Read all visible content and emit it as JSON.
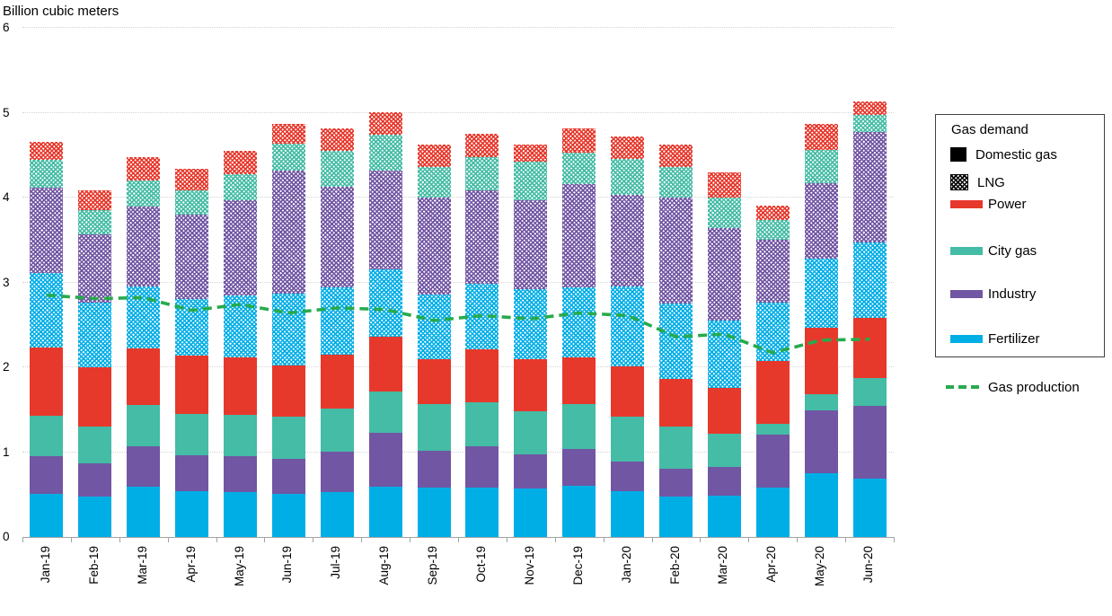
{
  "chart_data": {
    "type": "stacked-bar-with-line",
    "title": "Billion cubic meters",
    "ylim": [
      0,
      6
    ],
    "yticks": [
      0,
      1,
      2,
      3,
      4,
      5,
      6
    ],
    "grid": "horizontal-dotted",
    "legend_position": "right",
    "categories": [
      "Jan-19",
      "Feb-19",
      "Mar-19",
      "Apr-19",
      "May-19",
      "Jun-19",
      "Jul-19",
      "Aug-19",
      "Sep-19",
      "Oct-19",
      "Nov-19",
      "Dec-19",
      "Jan-20",
      "Feb-20",
      "Mar-20",
      "Apr-20",
      "May-20",
      "Jun-20"
    ],
    "series": [
      {
        "name": "Fertilizer",
        "group": "Domestic gas",
        "pattern": "solid",
        "color": "#00AEE6",
        "values": [
          0.51,
          0.48,
          0.59,
          0.54,
          0.53,
          0.51,
          0.53,
          0.59,
          0.58,
          0.58,
          0.57,
          0.6,
          0.54,
          0.48,
          0.49,
          0.58,
          0.75,
          0.69
        ]
      },
      {
        "name": "Industry",
        "group": "Domestic gas",
        "pattern": "solid",
        "color": "#7156A3",
        "values": [
          0.44,
          0.39,
          0.48,
          0.42,
          0.42,
          0.41,
          0.48,
          0.64,
          0.44,
          0.49,
          0.4,
          0.44,
          0.35,
          0.33,
          0.34,
          0.63,
          0.74,
          0.86
        ]
      },
      {
        "name": "City gas",
        "group": "Domestic gas",
        "pattern": "solid",
        "color": "#45BCA5",
        "values": [
          0.48,
          0.43,
          0.49,
          0.49,
          0.49,
          0.5,
          0.5,
          0.48,
          0.55,
          0.52,
          0.51,
          0.53,
          0.53,
          0.49,
          0.39,
          0.12,
          0.19,
          0.32
        ]
      },
      {
        "name": "Power",
        "group": "Domestic gas",
        "pattern": "solid",
        "color": "#E7382C",
        "values": [
          0.8,
          0.7,
          0.66,
          0.69,
          0.68,
          0.6,
          0.64,
          0.65,
          0.53,
          0.62,
          0.62,
          0.55,
          0.59,
          0.56,
          0.54,
          0.74,
          0.79,
          0.71
        ]
      },
      {
        "name": "Fertilizer LNG",
        "group": "LNG",
        "pattern": "hatch",
        "color": "#00AEE6",
        "values": [
          0.88,
          0.76,
          0.73,
          0.66,
          0.73,
          0.85,
          0.79,
          0.79,
          0.76,
          0.77,
          0.82,
          0.82,
          0.94,
          0.89,
          0.79,
          0.69,
          0.81,
          0.89
        ]
      },
      {
        "name": "Industry LNG",
        "group": "LNG",
        "pattern": "hatch",
        "color": "#7156A3",
        "values": [
          1.01,
          0.81,
          0.94,
          1.0,
          1.12,
          1.45,
          1.19,
          1.17,
          1.14,
          1.1,
          1.05,
          1.22,
          1.08,
          1.25,
          1.09,
          0.74,
          0.89,
          1.3
        ]
      },
      {
        "name": "City gas LNG",
        "group": "LNG",
        "pattern": "hatch",
        "color": "#45BCA5",
        "values": [
          0.33,
          0.28,
          0.31,
          0.28,
          0.31,
          0.32,
          0.42,
          0.42,
          0.36,
          0.4,
          0.45,
          0.37,
          0.43,
          0.36,
          0.36,
          0.24,
          0.39,
          0.2
        ]
      },
      {
        "name": "Power LNG",
        "group": "LNG",
        "pattern": "hatch",
        "color": "#E7382C",
        "values": [
          0.21,
          0.24,
          0.28,
          0.26,
          0.27,
          0.23,
          0.26,
          0.27,
          0.27,
          0.27,
          0.2,
          0.28,
          0.26,
          0.26,
          0.3,
          0.17,
          0.31,
          0.16
        ]
      }
    ],
    "line": {
      "name": "Gas production",
      "color": "#27AA4D",
      "style": "dashed",
      "values": [
        2.85,
        2.81,
        2.82,
        2.67,
        2.74,
        2.64,
        2.7,
        2.68,
        2.55,
        2.61,
        2.57,
        2.64,
        2.61,
        2.36,
        2.39,
        2.17,
        2.32,
        2.33
      ]
    }
  },
  "legend": {
    "title": "Gas demand",
    "items": [
      {
        "label": "Domestic gas",
        "swatch": "black-square",
        "color": "#000000"
      },
      {
        "label": "LNG",
        "swatch": "hatch-square",
        "color": "#000000"
      },
      {
        "label": "Power",
        "swatch": "bar",
        "color": "#E7382C"
      },
      {
        "label": "City gas",
        "swatch": "bar",
        "color": "#45BCA5"
      },
      {
        "label": "Industry",
        "swatch": "bar",
        "color": "#7156A3"
      },
      {
        "label": "Fertilizer",
        "swatch": "bar",
        "color": "#00AEE6"
      }
    ],
    "line_item": {
      "label": "Gas production",
      "color": "#27AA4D"
    }
  }
}
